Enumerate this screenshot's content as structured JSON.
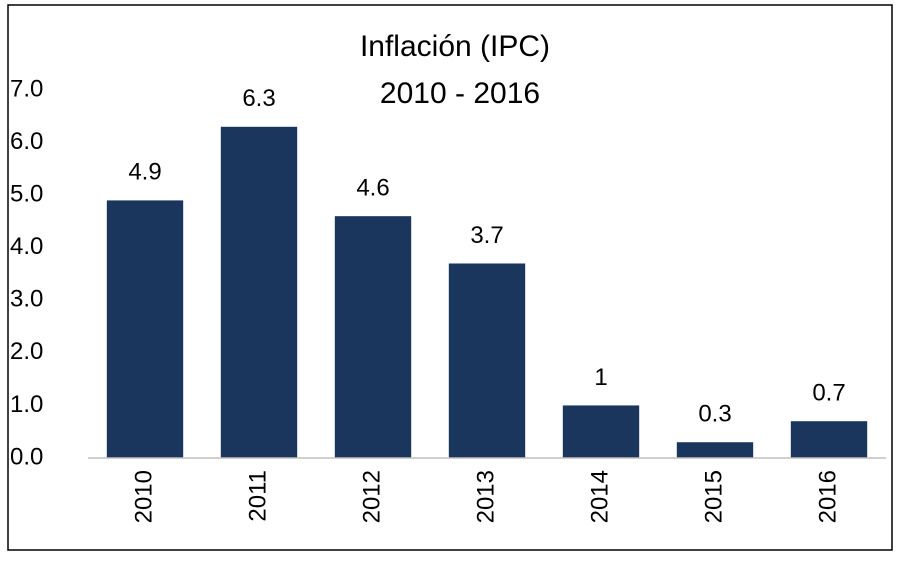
{
  "chart_data": {
    "type": "bar",
    "title": "Inflación (IPC)",
    "subtitle": "2010 - 2016",
    "categories": [
      "2010",
      "2011",
      "2012",
      "2013",
      "2014",
      "2015",
      "2016"
    ],
    "values": [
      4.9,
      6.3,
      4.6,
      3.7,
      1,
      0.3,
      0.7
    ],
    "color": "#1b365d",
    "ylim": [
      0,
      7
    ],
    "yticks": [
      {
        "value": 0,
        "label": "0.0"
      },
      {
        "value": 1,
        "label": "1.0"
      },
      {
        "value": 2,
        "label": "2.0"
      },
      {
        "value": 3,
        "label": "3.0"
      },
      {
        "value": 4,
        "label": "4.0"
      },
      {
        "value": 5,
        "label": "5.0"
      },
      {
        "value": 6,
        "label": "6.0"
      },
      {
        "value": 7,
        "label": "7.0"
      }
    ],
    "grid": false
  }
}
